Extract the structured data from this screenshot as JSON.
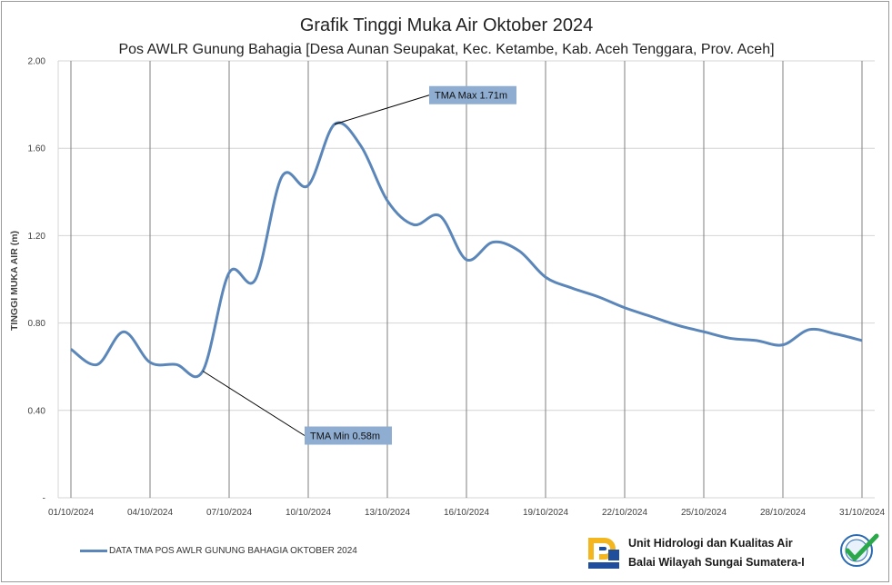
{
  "chart_data": {
    "type": "line",
    "title": "Grafik Tinggi Muka Air Oktober 2024",
    "subtitle": "Pos AWLR Gunung Bahagia [Desa Aunan Seupakat, Kec. Ketambe, Kab. Aceh Tenggara, Prov. Aceh]",
    "ylabel": "TINGGI MUKA AIR (m)",
    "xlabel": "",
    "ylim": [
      0,
      2.0
    ],
    "yticks": [
      "-",
      "0.40",
      "0.80",
      "1.20",
      "1.60",
      "2.00"
    ],
    "xlim": [
      "2024-10-01",
      "2024-10-31"
    ],
    "xticks": [
      "01/10/2024",
      "04/10/2024",
      "07/10/2024",
      "10/10/2024",
      "13/10/2024",
      "16/10/2024",
      "19/10/2024",
      "22/10/2024",
      "25/10/2024",
      "28/10/2024",
      "31/10/2024"
    ],
    "grid": true,
    "series": [
      {
        "name": "DATA TMA POS AWLR GUNUNG BAHAGIA OKTOBER 2024",
        "color": "#5b86b9",
        "x": [
          "01/10/2024",
          "02/10/2024",
          "03/10/2024",
          "04/10/2024",
          "05/10/2024",
          "06/10/2024",
          "07/10/2024",
          "08/10/2024",
          "09/10/2024",
          "10/10/2024",
          "11/10/2024",
          "12/10/2024",
          "13/10/2024",
          "14/10/2024",
          "15/10/2024",
          "16/10/2024",
          "17/10/2024",
          "18/10/2024",
          "19/10/2024",
          "20/10/2024",
          "21/10/2024",
          "22/10/2024",
          "23/10/2024",
          "24/10/2024",
          "25/10/2024",
          "26/10/2024",
          "27/10/2024",
          "28/10/2024",
          "29/10/2024",
          "30/10/2024",
          "31/10/2024"
        ],
        "values": [
          0.68,
          0.61,
          0.76,
          0.62,
          0.61,
          0.58,
          1.03,
          1.0,
          1.47,
          1.43,
          1.71,
          1.61,
          1.36,
          1.25,
          1.29,
          1.09,
          1.17,
          1.13,
          1.01,
          0.96,
          0.92,
          0.87,
          0.83,
          0.79,
          0.76,
          0.73,
          0.72,
          0.7,
          0.77,
          0.75,
          0.72
        ]
      }
    ],
    "annotations": [
      {
        "text": "TMA Max 1.71m",
        "x": "11/10/2024",
        "y": 1.71
      },
      {
        "text": "TMA Min 0.58m",
        "x": "06/10/2024",
        "y": 0.58
      }
    ]
  },
  "footer": {
    "org_line1": "Unit Hidrologi dan Kualitas Air",
    "org_line2": "Balai Wilayah Sungai Sumatera-I",
    "logo_icon": "pupr-logo-icon",
    "badge_icon": "iso-certified-badge-icon"
  }
}
